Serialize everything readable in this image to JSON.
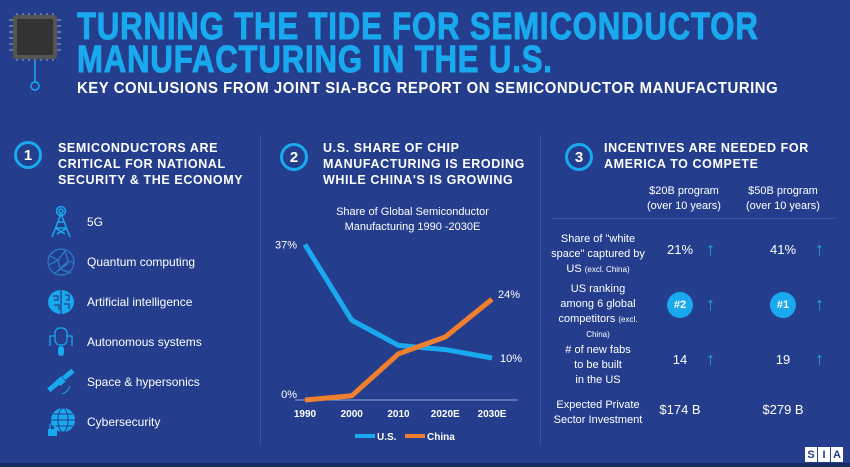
{
  "header": {
    "title_line1": "TURNING THE TIDE FOR SEMICONDUCTOR",
    "title_line2": "MANUFACTURING IN THE U.S.",
    "subtitle": "KEY CONLUSIONS FROM JOINT SIA-BCG REPORT ON SEMICONDUCTOR MANUFACTURING",
    "icon": "microchip-icon"
  },
  "section1": {
    "number": "1",
    "heading": [
      "SEMICONDUCTORS ARE",
      "CRITICAL FOR NATIONAL",
      "SECURITY & THE ECONOMY"
    ],
    "items": [
      {
        "label": "5G",
        "icon": "cell-tower-icon"
      },
      {
        "label": "Quantum computing",
        "icon": "network-sphere-icon"
      },
      {
        "label": "Artificial intelligence",
        "icon": "brain-icon"
      },
      {
        "label": "Autonomous systems",
        "icon": "robot-icon"
      },
      {
        "label": "Space & hypersonics",
        "icon": "satellite-icon"
      },
      {
        "label": "Cybersecurity",
        "icon": "globe-lock-icon"
      }
    ]
  },
  "section2": {
    "number": "2",
    "heading": [
      "U.S. SHARE OF CHIP",
      "MANUFACTURING IS ERODING",
      "WHILE CHINA'S IS GROWING"
    ]
  },
  "chart_data": {
    "type": "line",
    "title": "Share of Global Semiconductor Manufacturing 1990 -2030E",
    "categories": [
      "1990",
      "2000",
      "2010",
      "2020E",
      "2030E"
    ],
    "ylim": [
      0,
      40
    ],
    "grid": false,
    "legend": "bottom",
    "series": [
      {
        "name": "U.S.",
        "color": "#19a9ee",
        "values": [
          37,
          19,
          13,
          12,
          10
        ]
      },
      {
        "name": "China",
        "color": "#f07f2e",
        "values": [
          0,
          1,
          11,
          15,
          24
        ]
      }
    ],
    "annotations": [
      "37%",
      "0%",
      "24%",
      "10%"
    ]
  },
  "section3": {
    "number": "3",
    "heading": [
      "INCENTIVES ARE NEEDED FOR",
      "AMERICA TO COMPETE"
    ],
    "columns": [
      [
        "$20B program",
        "(over 10 years)"
      ],
      [
        "$50B program",
        "(over 10 years)"
      ]
    ],
    "rows": [
      {
        "label": [
          "Share of \"white",
          "space\" captured by",
          "US"
        ],
        "note": "(excl. China)",
        "values": [
          "21%",
          "41%"
        ],
        "arrow": true,
        "badge": false
      },
      {
        "label": [
          "US ranking",
          "among 6 global",
          "competitors"
        ],
        "note": "(excl. China)",
        "values": [
          "#2",
          "#1"
        ],
        "arrow": true,
        "badge": true
      },
      {
        "label": [
          "# of new fabs",
          "to be built",
          "in the US"
        ],
        "note": "",
        "values": [
          "14",
          "19"
        ],
        "arrow": true,
        "badge": false
      },
      {
        "label": [
          "Expected Private",
          "Sector Investment"
        ],
        "note": "",
        "values": [
          "$174 B",
          "$279 B"
        ],
        "arrow": false,
        "badge": false
      }
    ],
    "arrow_glyph": "↑"
  },
  "logo": [
    "S",
    "I",
    "A"
  ]
}
